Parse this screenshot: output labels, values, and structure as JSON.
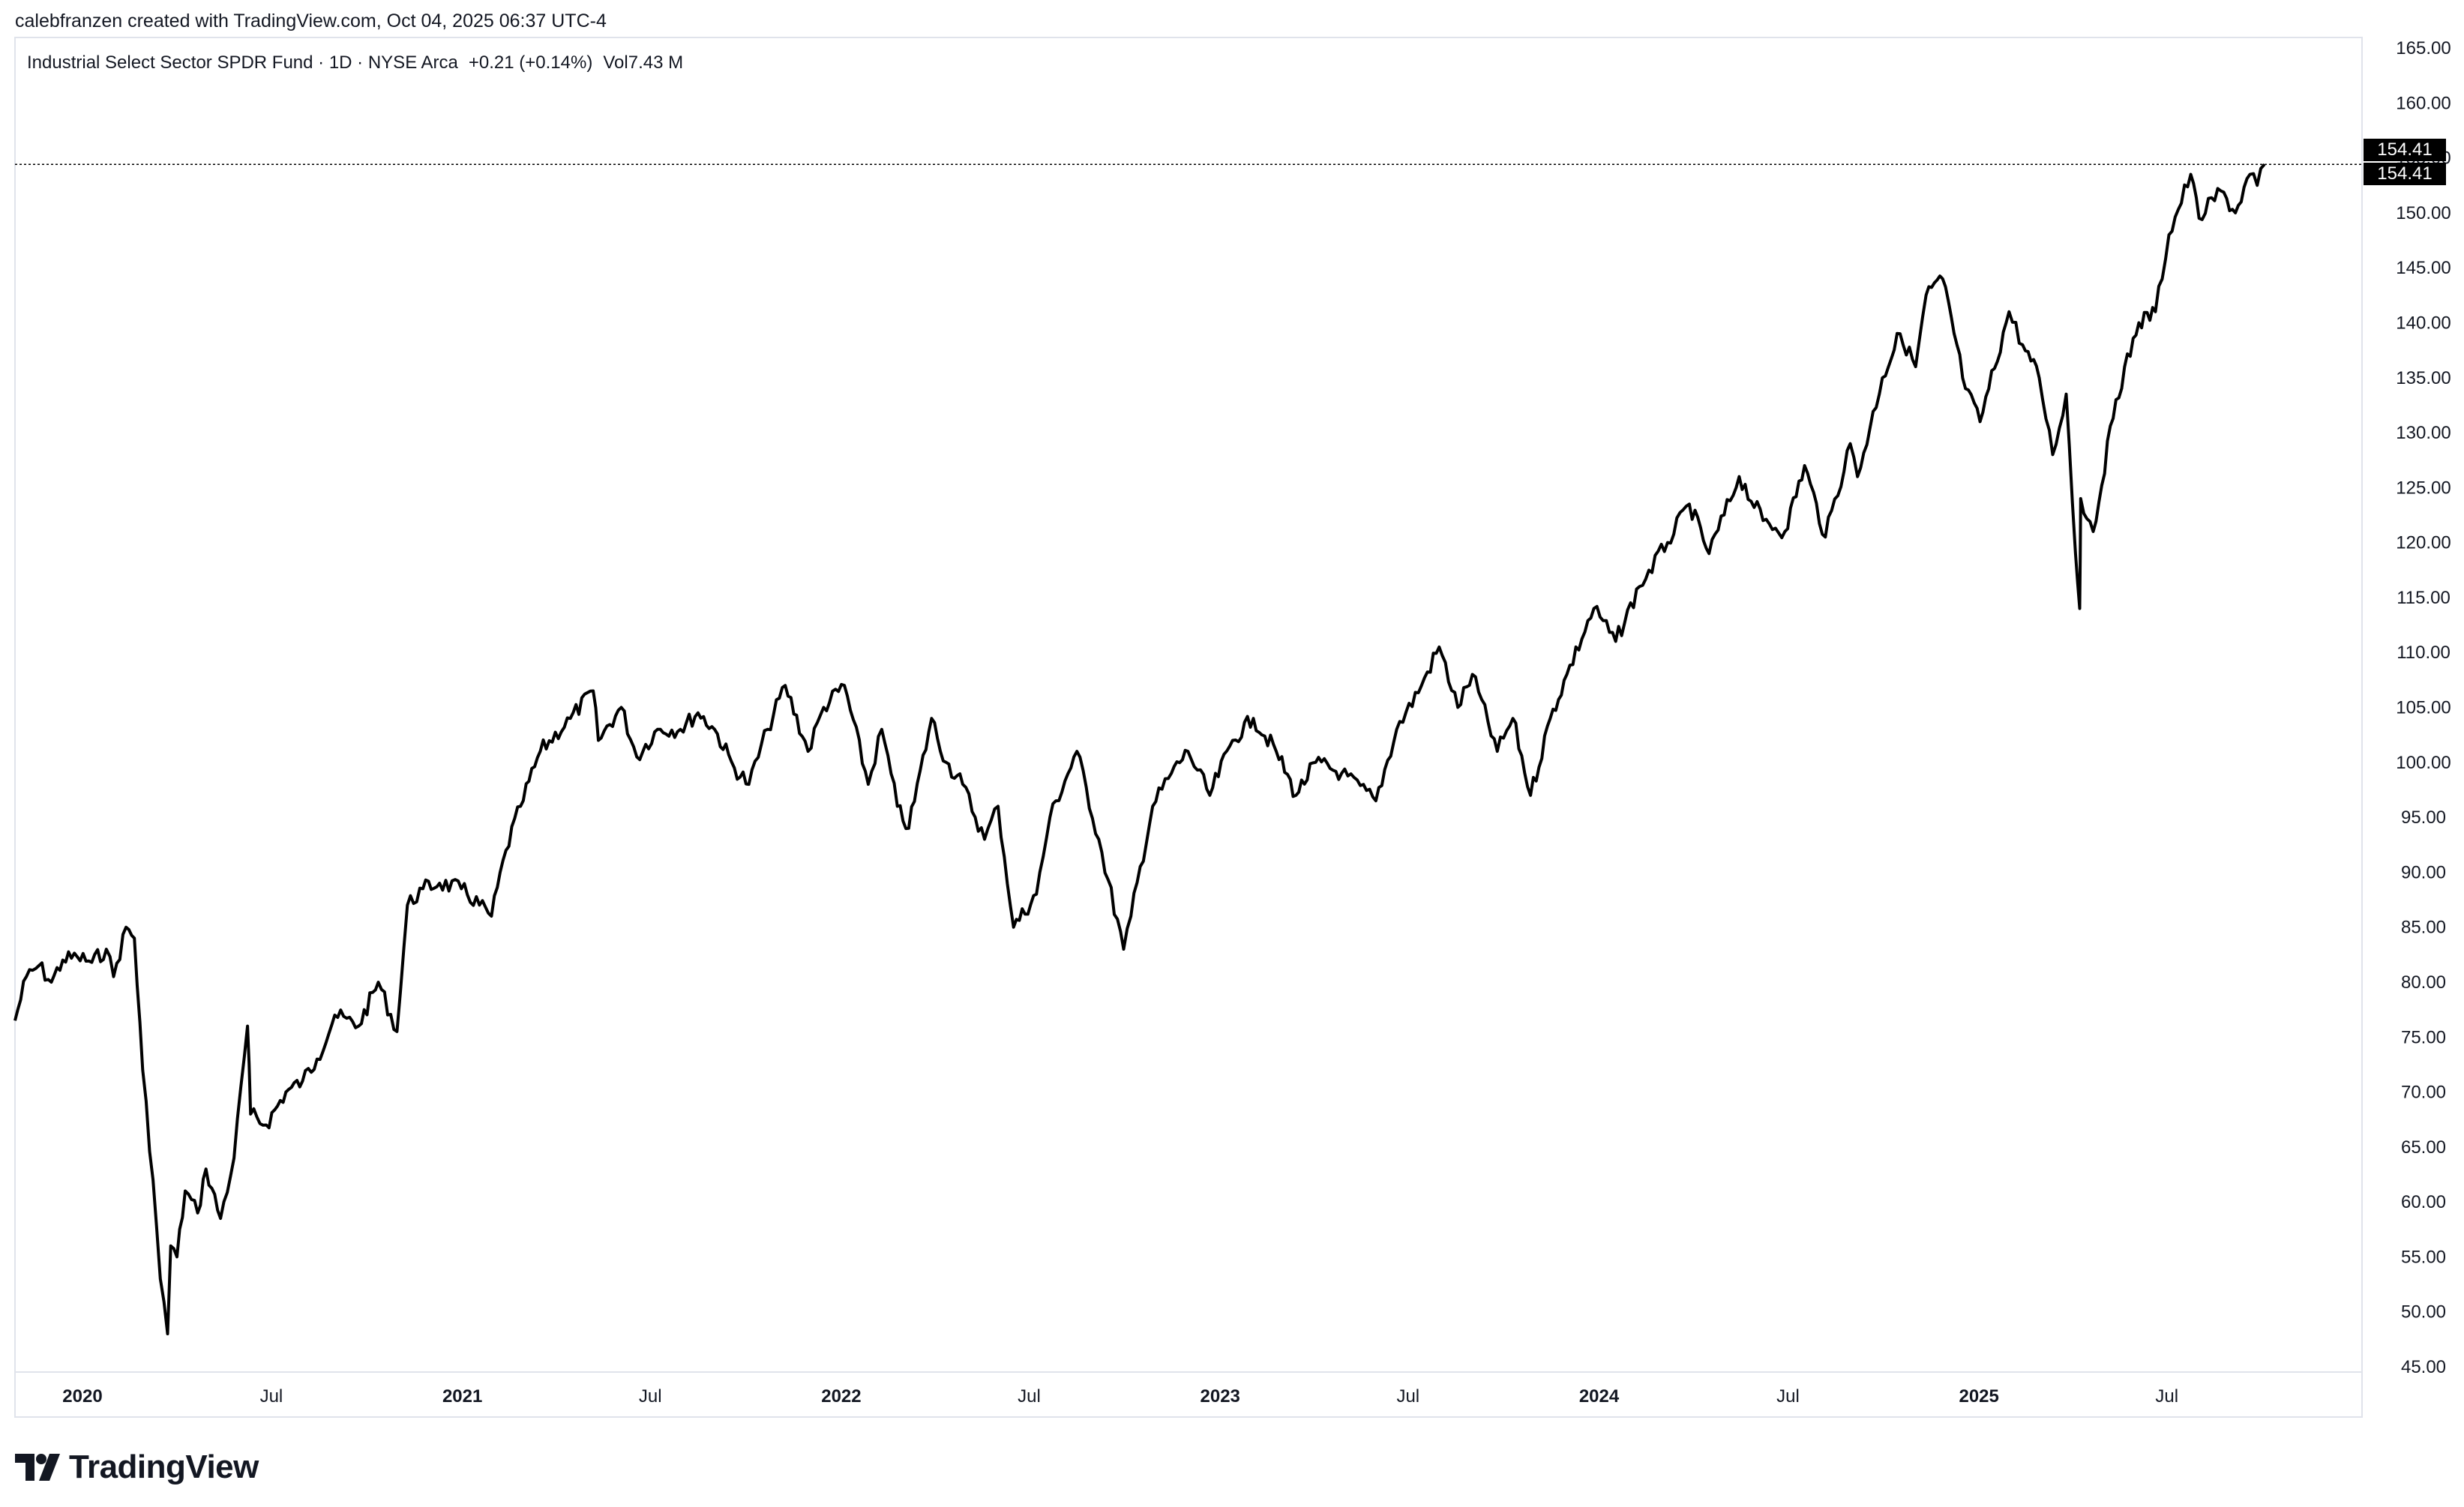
{
  "header": {
    "attribution": "calebfranzen created with TradingView.com, Oct 04, 2025 06:37 UTC-4"
  },
  "legend": {
    "symbol": "Industrial Select Sector SPDR Fund · 1D · NYSE Arca",
    "change": "+0.21 (+0.14%)",
    "volume_label": "Vol",
    "volume": "7.43 M"
  },
  "price_labels": {
    "last": "154.41",
    "close": "154.41"
  },
  "brand": {
    "name": "TradingView"
  },
  "colors": {
    "line": "#000000",
    "grid_border": "#e0e3eb",
    "text": "#131722",
    "label_bg": "#000000"
  },
  "chart_data": {
    "type": "line",
    "title": "Industrial Select Sector SPDR Fund · 1D · NYSE Arca",
    "xlabel": "",
    "ylabel": "",
    "ylim": [
      45,
      165
    ],
    "xlim": [
      "2019-10-28",
      "2026-01-05"
    ],
    "grid": false,
    "y_ticks": [
      "165.00",
      "160.00",
      "155.00",
      "150.00",
      "145.00",
      "140.00",
      "135.00",
      "130.00",
      "125.00",
      "120.00",
      "115.00",
      "110.00",
      "105.00",
      "100.00",
      "95.00",
      "90.00",
      "85.00",
      "80.00",
      "75.00",
      "70.00",
      "65.00",
      "60.00",
      "55.00",
      "50.00",
      "45.00"
    ],
    "x_ticks": [
      {
        "label": "2020",
        "date": "2020-01-01",
        "bold": true
      },
      {
        "label": "Jul",
        "date": "2020-07-01",
        "bold": false
      },
      {
        "label": "2021",
        "date": "2021-01-01",
        "bold": true
      },
      {
        "label": "Jul",
        "date": "2021-07-01",
        "bold": false
      },
      {
        "label": "2022",
        "date": "2022-01-01",
        "bold": true
      },
      {
        "label": "Jul",
        "date": "2022-07-01",
        "bold": false
      },
      {
        "label": "2023",
        "date": "2023-01-01",
        "bold": true
      },
      {
        "label": "Jul",
        "date": "2023-07-01",
        "bold": false
      },
      {
        "label": "2024",
        "date": "2024-01-01",
        "bold": true
      },
      {
        "label": "Jul",
        "date": "2024-07-01",
        "bold": false
      },
      {
        "label": "2025",
        "date": "2025-01-01",
        "bold": true
      },
      {
        "label": "Jul",
        "date": "2025-07-01",
        "bold": false
      }
    ],
    "reference_line": 154.41,
    "series": [
      {
        "points": [
          [
            "2019-10-28",
            76.5
          ],
          [
            "2019-11-08",
            80.5
          ],
          [
            "2019-11-20",
            81.5
          ],
          [
            "2019-12-02",
            80.0
          ],
          [
            "2019-12-13",
            82.0
          ],
          [
            "2019-12-27",
            82.3
          ],
          [
            "2020-01-10",
            81.8
          ],
          [
            "2020-01-24",
            83.0
          ],
          [
            "2020-01-31",
            80.5
          ],
          [
            "2020-02-12",
            85.0
          ],
          [
            "2020-02-20",
            84.0
          ],
          [
            "2020-02-28",
            72.0
          ],
          [
            "2020-03-09",
            62.0
          ],
          [
            "2020-03-16",
            53.0
          ],
          [
            "2020-03-23",
            48.0
          ],
          [
            "2020-03-26",
            56.0
          ],
          [
            "2020-04-01",
            55.0
          ],
          [
            "2020-04-09",
            61.0
          ],
          [
            "2020-04-21",
            59.0
          ],
          [
            "2020-04-29",
            63.0
          ],
          [
            "2020-05-13",
            58.5
          ],
          [
            "2020-05-26",
            64.0
          ],
          [
            "2020-06-08",
            76.0
          ],
          [
            "2020-06-11",
            68.0
          ],
          [
            "2020-06-26",
            67.0
          ],
          [
            "2020-07-15",
            70.0
          ],
          [
            "2020-07-31",
            71.0
          ],
          [
            "2020-08-14",
            73.0
          ],
          [
            "2020-08-31",
            77.0
          ],
          [
            "2020-09-23",
            76.0
          ],
          [
            "2020-10-12",
            80.0
          ],
          [
            "2020-10-30",
            75.5
          ],
          [
            "2020-11-09",
            87.0
          ],
          [
            "2020-11-24",
            88.5
          ],
          [
            "2020-12-10",
            89.0
          ],
          [
            "2020-12-31",
            88.5
          ],
          [
            "2021-01-29",
            86.0
          ],
          [
            "2021-02-12",
            92.0
          ],
          [
            "2021-02-26",
            96.0
          ],
          [
            "2021-03-17",
            101.0
          ],
          [
            "2021-04-15",
            104.0
          ],
          [
            "2021-05-07",
            106.5
          ],
          [
            "2021-05-12",
            102.0
          ],
          [
            "2021-06-03",
            105.0
          ],
          [
            "2021-06-18",
            100.5
          ],
          [
            "2021-07-08",
            103.0
          ],
          [
            "2021-07-30",
            103.0
          ],
          [
            "2021-08-16",
            104.5
          ],
          [
            "2021-09-01",
            103.0
          ],
          [
            "2021-09-20",
            99.5
          ],
          [
            "2021-10-04",
            98.0
          ],
          [
            "2021-10-22",
            103.0
          ],
          [
            "2021-11-08",
            107.0
          ],
          [
            "2021-11-30",
            101.0
          ],
          [
            "2021-12-15",
            105.0
          ],
          [
            "2022-01-04",
            107.0
          ],
          [
            "2022-01-27",
            98.0
          ],
          [
            "2022-02-09",
            103.0
          ],
          [
            "2022-02-24",
            96.0
          ],
          [
            "2022-03-07",
            94.0
          ],
          [
            "2022-03-29",
            104.0
          ],
          [
            "2022-04-12",
            100.0
          ],
          [
            "2022-04-28",
            98.0
          ],
          [
            "2022-05-19",
            93.0
          ],
          [
            "2022-06-01",
            96.0
          ],
          [
            "2022-06-16",
            85.0
          ],
          [
            "2022-07-08",
            88.0
          ],
          [
            "2022-07-21",
            95.0
          ],
          [
            "2022-08-16",
            101.0
          ],
          [
            "2022-09-06",
            93.0
          ],
          [
            "2022-09-30",
            83.0
          ],
          [
            "2022-10-07",
            86.0
          ],
          [
            "2022-10-28",
            96.0
          ],
          [
            "2022-11-15",
            99.0
          ],
          [
            "2022-12-01",
            101.0
          ],
          [
            "2022-12-22",
            97.0
          ],
          [
            "2023-01-13",
            102.0
          ],
          [
            "2023-02-02",
            104.0
          ],
          [
            "2023-02-24",
            101.0
          ],
          [
            "2023-03-15",
            97.0
          ],
          [
            "2023-04-03",
            100.0
          ],
          [
            "2023-04-28",
            99.0
          ],
          [
            "2023-05-31",
            96.5
          ],
          [
            "2023-06-20",
            103.0
          ],
          [
            "2023-07-14",
            107.0
          ],
          [
            "2023-07-31",
            110.5
          ],
          [
            "2023-08-18",
            105.0
          ],
          [
            "2023-09-01",
            108.0
          ],
          [
            "2023-09-25",
            101.0
          ],
          [
            "2023-10-10",
            104.0
          ],
          [
            "2023-10-27",
            97.0
          ],
          [
            "2023-11-15",
            104.0
          ],
          [
            "2023-12-01",
            108.0
          ],
          [
            "2023-12-27",
            114.0
          ],
          [
            "2024-01-17",
            111.0
          ],
          [
            "2024-02-09",
            116.0
          ],
          [
            "2024-03-07",
            120.0
          ],
          [
            "2024-03-28",
            123.5
          ],
          [
            "2024-04-16",
            119.0
          ],
          [
            "2024-05-15",
            126.0
          ],
          [
            "2024-06-07",
            122.0
          ],
          [
            "2024-06-28",
            121.0
          ],
          [
            "2024-07-17",
            127.0
          ],
          [
            "2024-08-06",
            120.5
          ],
          [
            "2024-08-30",
            129.0
          ],
          [
            "2024-09-06",
            126.0
          ],
          [
            "2024-09-30",
            135.0
          ],
          [
            "2024-10-17",
            139.0
          ],
          [
            "2024-11-01",
            136.0
          ],
          [
            "2024-11-11",
            142.5
          ],
          [
            "2024-11-27",
            144.0
          ],
          [
            "2024-12-19",
            134.0
          ],
          [
            "2025-01-02",
            131.0
          ],
          [
            "2025-01-30",
            141.0
          ],
          [
            "2025-02-12",
            138.0
          ],
          [
            "2025-02-28",
            135.0
          ],
          [
            "2025-03-13",
            128.0
          ],
          [
            "2025-03-26",
            133.5
          ],
          [
            "2025-04-04",
            119.0
          ],
          [
            "2025-04-08",
            114.0
          ],
          [
            "2025-04-09",
            124.0
          ],
          [
            "2025-04-21",
            121.0
          ],
          [
            "2025-05-13",
            133.0
          ],
          [
            "2025-06-04",
            140.0
          ],
          [
            "2025-06-20",
            141.0
          ],
          [
            "2025-07-03",
            148.0
          ],
          [
            "2025-07-24",
            153.5
          ],
          [
            "2025-08-01",
            149.5
          ],
          [
            "2025-08-22",
            152.0
          ],
          [
            "2025-09-05",
            150.0
          ],
          [
            "2025-09-19",
            153.5
          ],
          [
            "2025-09-26",
            152.5
          ],
          [
            "2025-10-03",
            154.41
          ]
        ]
      }
    ]
  }
}
